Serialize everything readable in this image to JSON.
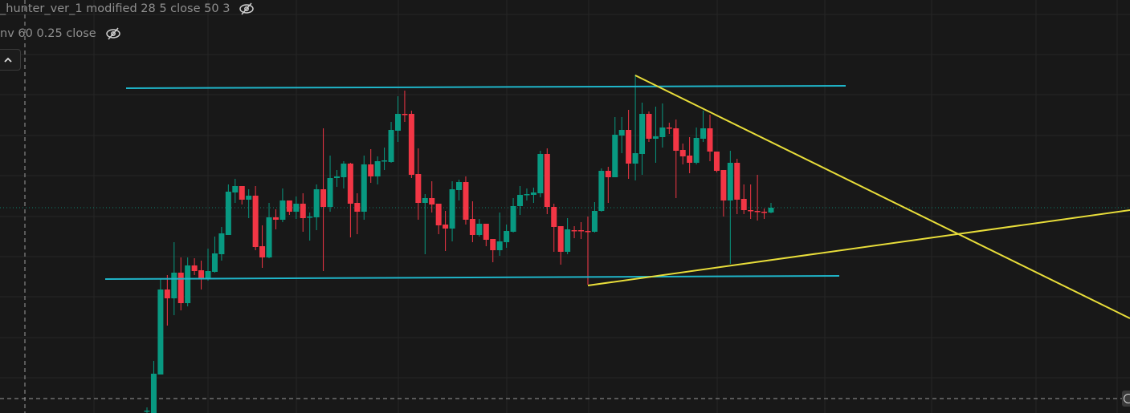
{
  "legend": {
    "indicator1": "_hunter_ver_1 modified 28 5 close 50 3",
    "indicator2": "nv 60 0.25 close",
    "indicator1_icon": "eye-crossed-icon",
    "indicator2_icon": "eye-crossed-icon"
  },
  "controls": {
    "collapse_icon": "chevron-up-icon",
    "crosshair_icon": "circle-icon"
  },
  "colors": {
    "background": "#181818",
    "up": "#089981",
    "down": "#f23645",
    "support_resistance": "#1fb5c9",
    "trendline": "#e8dd3a",
    "grid": "#262626"
  },
  "chart_data": {
    "type": "candlestick",
    "title": "",
    "grid": true,
    "fields": [
      "open",
      "high",
      "low",
      "close"
    ],
    "candles": [
      [
        2,
        7,
        0,
        3
      ],
      [
        0,
        65,
        0,
        49
      ],
      [
        48,
        167,
        48,
        154
      ],
      [
        154,
        172,
        109,
        143
      ],
      [
        143,
        213,
        122,
        175
      ],
      [
        175,
        194,
        128,
        137
      ],
      [
        137,
        194,
        133,
        184
      ],
      [
        184,
        193,
        172,
        177
      ],
      [
        178,
        190,
        154,
        168
      ],
      [
        168,
        205,
        165,
        177
      ],
      [
        176,
        220,
        175,
        199
      ],
      [
        198,
        232,
        190,
        224
      ],
      [
        222,
        285,
        222,
        276
      ],
      [
        275,
        292,
        262,
        283
      ],
      [
        283,
        283,
        260,
        266
      ],
      [
        266,
        279,
        243,
        271
      ],
      [
        271,
        283,
        203,
        207
      ],
      [
        208,
        234,
        181,
        194
      ],
      [
        194,
        262,
        193,
        244
      ],
      [
        244,
        254,
        229,
        241
      ],
      [
        241,
        280,
        238,
        265
      ],
      [
        265,
        265,
        247,
        251
      ],
      [
        251,
        270,
        242,
        261
      ],
      [
        261,
        274,
        226,
        243
      ],
      [
        244,
        250,
        215,
        245
      ],
      [
        244,
        285,
        228,
        279
      ],
      [
        279,
        355,
        177,
        257
      ],
      [
        257,
        321,
        251,
        293
      ],
      [
        293,
        303,
        282,
        295
      ],
      [
        294,
        314,
        280,
        311
      ],
      [
        311,
        312,
        219,
        261
      ],
      [
        262,
        274,
        223,
        251
      ],
      [
        251,
        321,
        241,
        310
      ],
      [
        310,
        329,
        287,
        295
      ],
      [
        295,
        320,
        285,
        314
      ],
      [
        314,
        331,
        303,
        315
      ],
      [
        313,
        363,
        312,
        353
      ],
      [
        352,
        395,
        338,
        373
      ],
      [
        373,
        402,
        363,
        372
      ],
      [
        373,
        377,
        293,
        297
      ],
      [
        298,
        330,
        241,
        262
      ],
      [
        262,
        273,
        198,
        268
      ],
      [
        268,
        289,
        250,
        260
      ],
      [
        261,
        261,
        223,
        234
      ],
      [
        235,
        252,
        202,
        230
      ],
      [
        230,
        289,
        214,
        279
      ],
      [
        278,
        291,
        265,
        288
      ],
      [
        288,
        295,
        235,
        241
      ],
      [
        242,
        264,
        213,
        222
      ],
      [
        222,
        242,
        220,
        236
      ],
      [
        236,
        236,
        208,
        216
      ],
      [
        217,
        217,
        188,
        203
      ],
      [
        203,
        250,
        196,
        214
      ],
      [
        213,
        235,
        206,
        227
      ],
      [
        226,
        268,
        225,
        258
      ],
      [
        258,
        283,
        247,
        272
      ],
      [
        273,
        280,
        265,
        273
      ],
      [
        272,
        281,
        262,
        275
      ],
      [
        274,
        327,
        269,
        323
      ],
      [
        323,
        330,
        248,
        257
      ],
      [
        257,
        261,
        201,
        232
      ],
      [
        233,
        233,
        185,
        201
      ],
      [
        201,
        243,
        198,
        229
      ],
      [
        228,
        233,
        218,
        227
      ],
      [
        228,
        238,
        217,
        227
      ],
      [
        227,
        245,
        160,
        226
      ],
      [
        226,
        263,
        225,
        252
      ],
      [
        252,
        305,
        251,
        302
      ],
      [
        302,
        307,
        262,
        294
      ],
      [
        294,
        369,
        294,
        347
      ],
      [
        346,
        369,
        324,
        353
      ],
      [
        353,
        378,
        292,
        311
      ],
      [
        311,
        422,
        290,
        324
      ],
      [
        323,
        387,
        297,
        373
      ],
      [
        373,
        376,
        338,
        342
      ],
      [
        342,
        382,
        312,
        345
      ],
      [
        344,
        386,
        331,
        356
      ],
      [
        356,
        362,
        348,
        355
      ],
      [
        355,
        366,
        268,
        327
      ],
      [
        328,
        336,
        310,
        320
      ],
      [
        321,
        344,
        299,
        312
      ],
      [
        312,
        356,
        310,
        343
      ],
      [
        342,
        377,
        338,
        355
      ],
      [
        355,
        372,
        314,
        326
      ],
      [
        326,
        326,
        300,
        302
      ],
      [
        303,
        303,
        245,
        265
      ],
      [
        265,
        327,
        186,
        312
      ],
      [
        312,
        317,
        248,
        266
      ],
      [
        267,
        285,
        248,
        253
      ],
      [
        253,
        285,
        242,
        252
      ],
      [
        252,
        297,
        240,
        251
      ],
      [
        251,
        255,
        242,
        250
      ],
      [
        250,
        262,
        249,
        256
      ]
    ],
    "last_price_line": 256
  }
}
